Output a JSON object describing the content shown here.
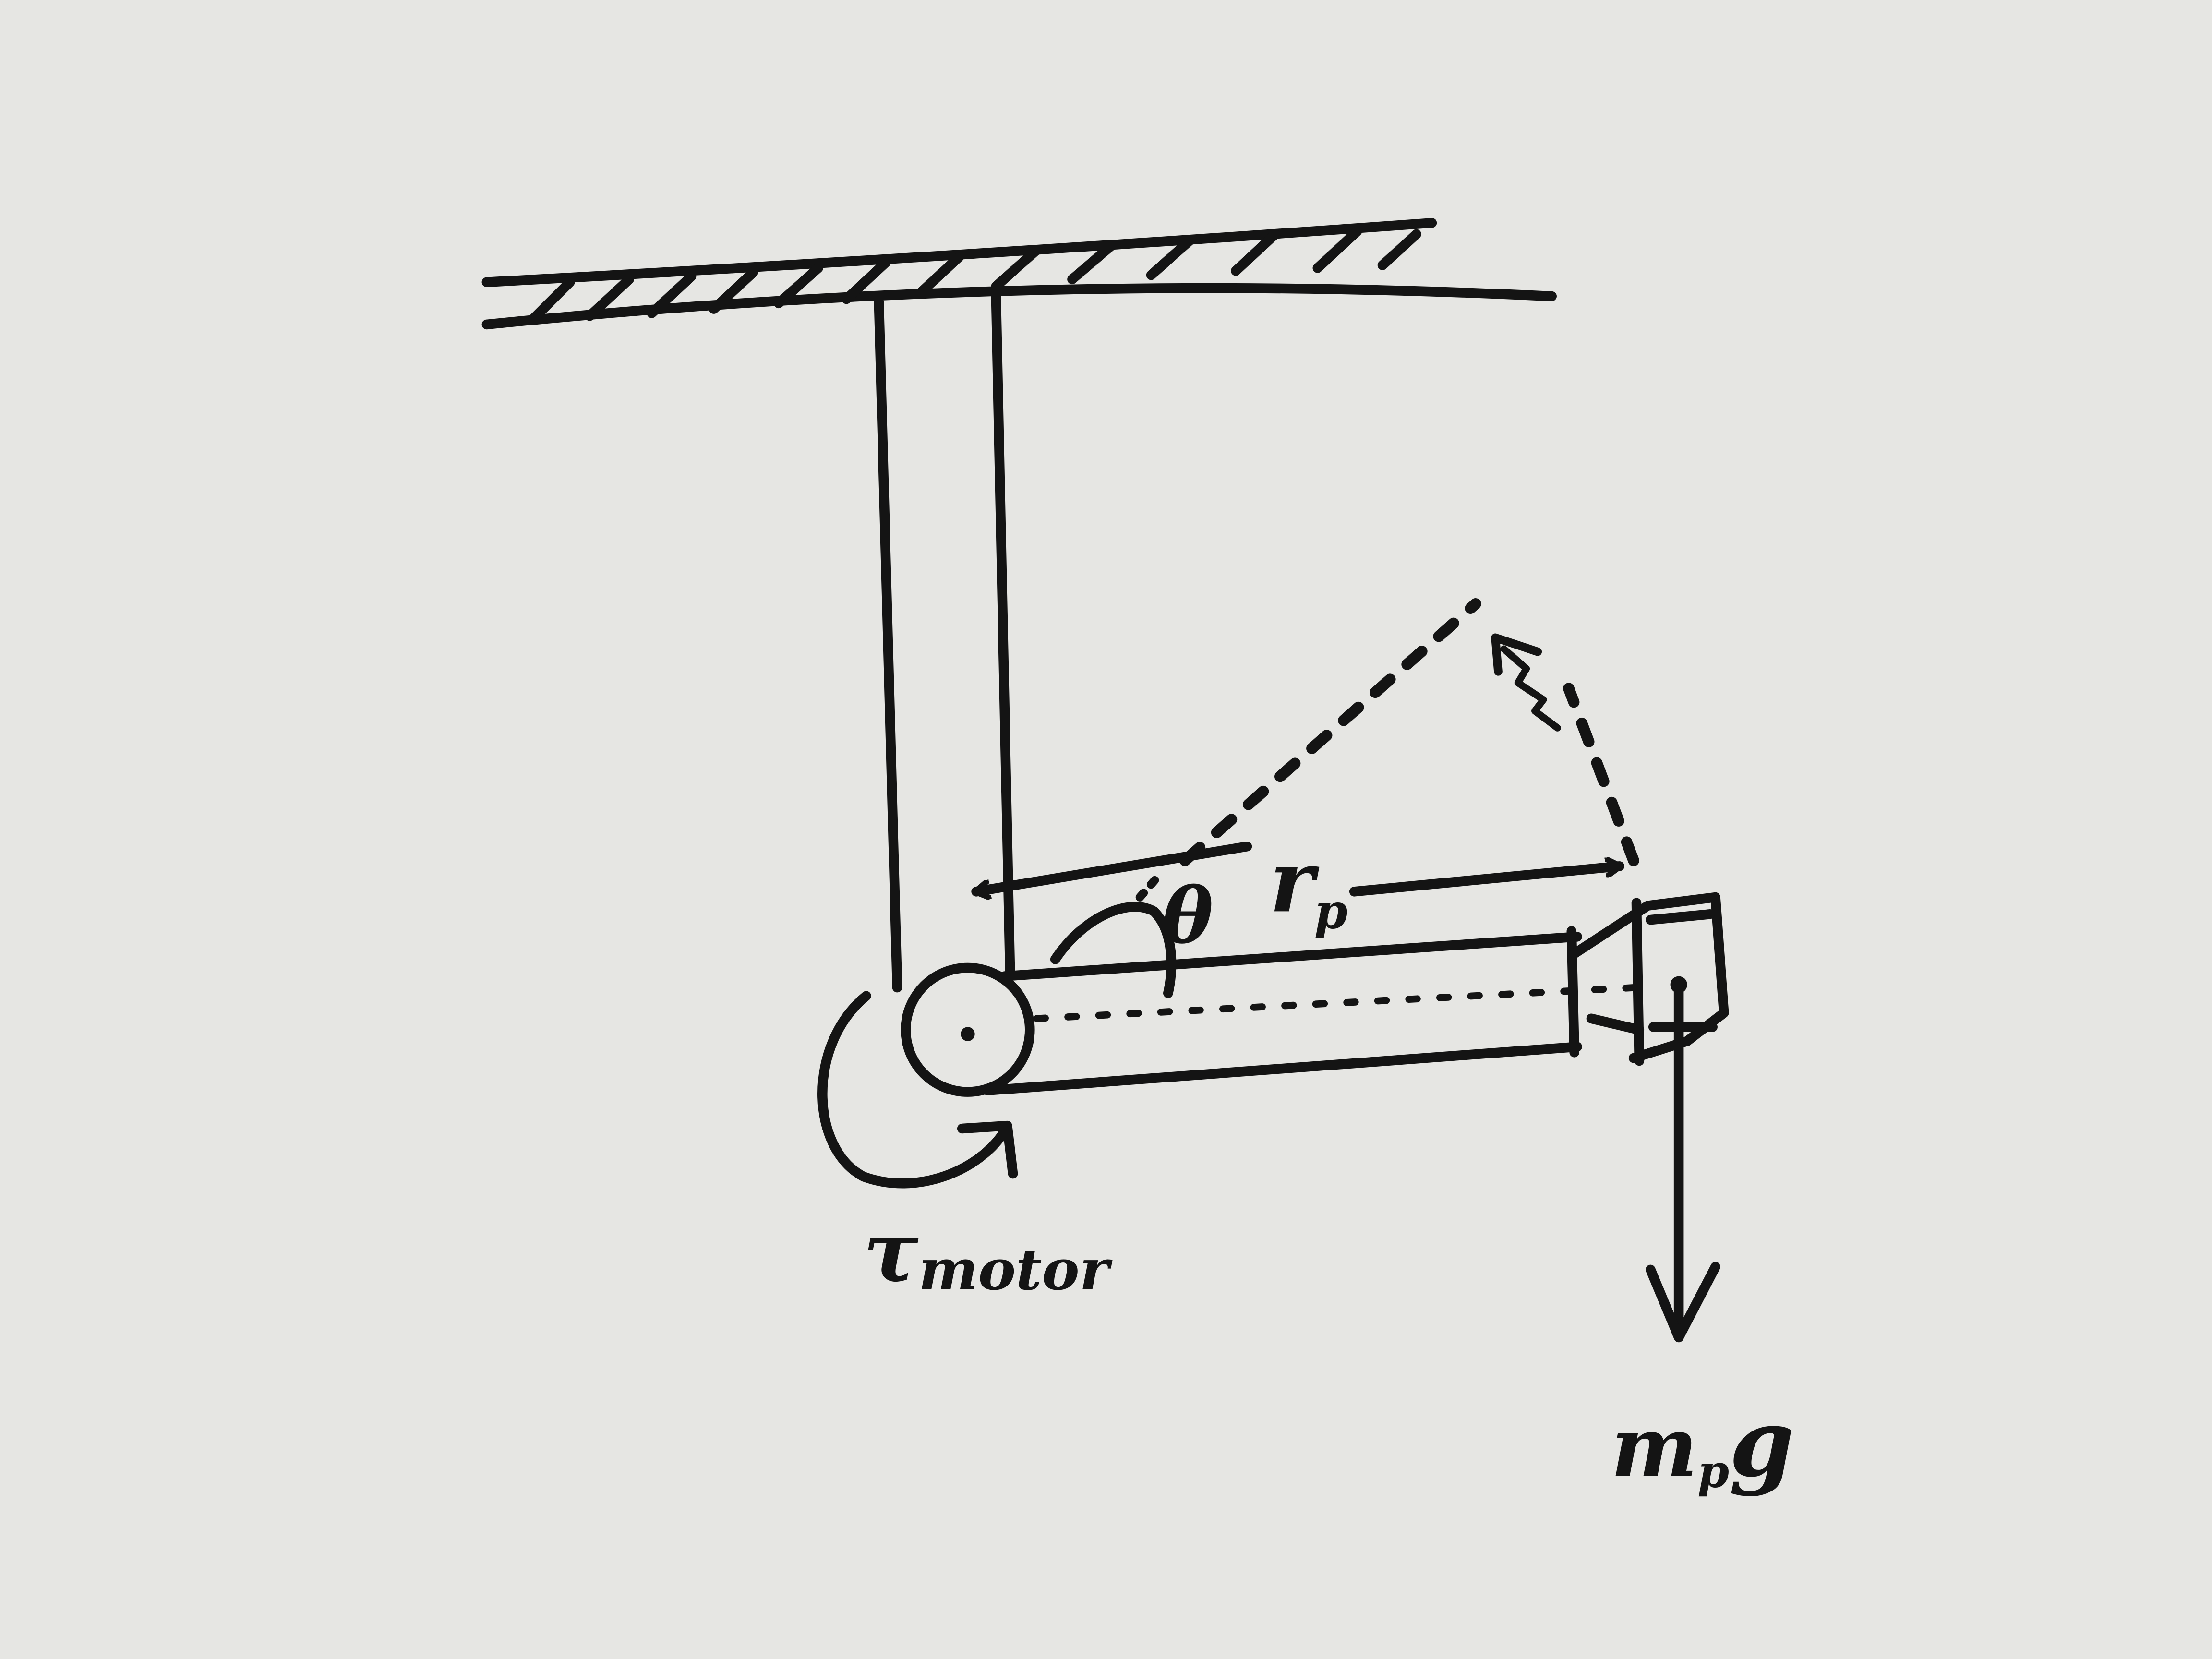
{
  "diagram": {
    "labels": {
      "angle": "θ",
      "radius_main": "r",
      "radius_sub": "p",
      "torque_main": "τ",
      "torque_sub": "motor",
      "weight_main": "m",
      "weight_sub": "p",
      "weight_tail": "g"
    },
    "colors": {
      "paper": "#e6e6e3",
      "ink": "#141414"
    }
  }
}
